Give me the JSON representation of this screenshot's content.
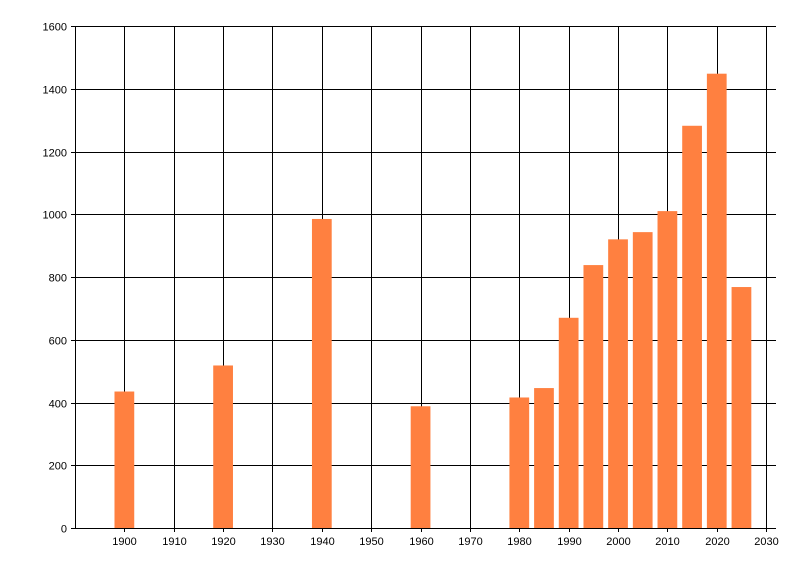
{
  "chart_data": {
    "type": "bar",
    "x": [
      1900,
      1920,
      1940,
      1960,
      1980,
      1985,
      1990,
      1995,
      2000,
      2005,
      2010,
      2015,
      2020,
      2025
    ],
    "values": [
      435,
      518,
      985,
      388,
      416,
      446,
      670,
      838,
      920,
      943,
      1010,
      1282,
      1448,
      768
    ],
    "xlim": [
      1890,
      2032
    ],
    "ylim": [
      0,
      1600
    ],
    "x_ticks": [
      1900,
      1910,
      1920,
      1930,
      1940,
      1950,
      1960,
      1970,
      1980,
      1990,
      2000,
      2010,
      2020,
      2030
    ],
    "y_ticks": [
      0,
      200,
      400,
      600,
      800,
      1000,
      1200,
      1400,
      1600
    ],
    "title": "",
    "xlabel": "",
    "ylabel": "",
    "grid": true,
    "bar_color": "#ff8040",
    "grid_color": "#000000"
  }
}
